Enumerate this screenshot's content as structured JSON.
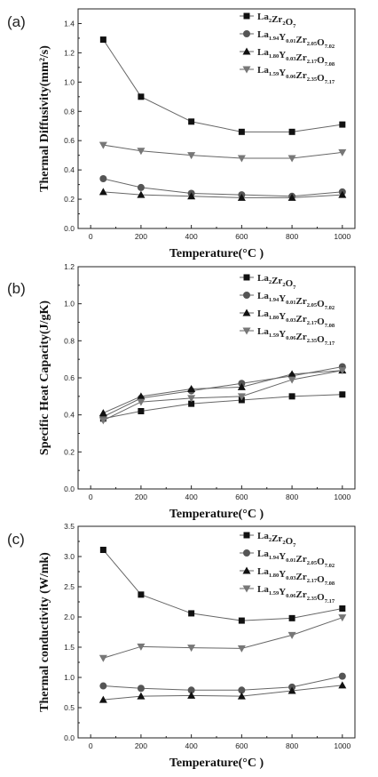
{
  "chart_data": [
    {
      "type": "line",
      "panel_label": "(a)",
      "xlabel": "Temperature(°C )",
      "ylabel": "Thermal Diffusivity(mm²/s)",
      "xlim": [
        -50,
        1050
      ],
      "ylim": [
        0.0,
        1.5
      ],
      "xticks": [
        "0",
        "200",
        "400",
        "600",
        "800",
        "1000"
      ],
      "yticks": [
        "0.0",
        "0.2",
        "0.4",
        "0.6",
        "0.8",
        "1.0",
        "1.2",
        "1.4"
      ],
      "x": [
        50,
        200,
        400,
        600,
        800,
        1000
      ],
      "series": [
        {
          "name": "La2Zr2O7",
          "label_main": "La",
          "label_parts": [
            [
              "La",
              "2"
            ],
            [
              "Zr",
              "2"
            ],
            [
              "O",
              "7"
            ]
          ],
          "marker": "square",
          "values": [
            1.29,
            0.9,
            0.73,
            0.66,
            0.66,
            0.71
          ]
        },
        {
          "name": "La1.94Y0.01Zr2.05O7.02",
          "label_parts": [
            [
              "La",
              "1.94"
            ],
            [
              "Y",
              "0.01"
            ],
            [
              "Zr",
              "2.05"
            ],
            [
              "O",
              "7.02"
            ]
          ],
          "marker": "circle",
          "values": [
            0.34,
            0.28,
            0.24,
            0.23,
            0.22,
            0.25
          ]
        },
        {
          "name": "La1.80Y0.03Zr2.17O7.08",
          "label_parts": [
            [
              "La",
              "1.80"
            ],
            [
              "Y",
              "0.03"
            ],
            [
              "Zr",
              "2.17"
            ],
            [
              "O",
              "7.08"
            ]
          ],
          "marker": "triangle-up",
          "values": [
            0.25,
            0.23,
            0.22,
            0.21,
            0.21,
            0.23
          ]
        },
        {
          "name": "La1.59Y0.06Zr2.35O7.17",
          "label_parts": [
            [
              "La",
              "1.59"
            ],
            [
              "Y",
              "0.06"
            ],
            [
              "Zr",
              "2.35"
            ],
            [
              "O",
              "7.17"
            ]
          ],
          "marker": "triangle-down",
          "values": [
            0.57,
            0.53,
            0.5,
            0.48,
            0.48,
            0.52
          ]
        }
      ]
    },
    {
      "type": "line",
      "panel_label": "(b)",
      "xlabel": "Temperature(°C )",
      "ylabel": "Specific Heat Capacity(J/gK)",
      "xlim": [
        -50,
        1050
      ],
      "ylim": [
        0.0,
        1.2
      ],
      "xticks": [
        "0",
        "200",
        "400",
        "600",
        "800",
        "1000"
      ],
      "yticks": [
        "0.0",
        "0.2",
        "0.4",
        "0.6",
        "0.8",
        "1.0",
        "1.2"
      ],
      "x": [
        50,
        200,
        400,
        600,
        800,
        1000
      ],
      "series": [
        {
          "name": "La2Zr2O7",
          "label_parts": [
            [
              "La",
              "2"
            ],
            [
              "Zr",
              "2"
            ],
            [
              "O",
              "7"
            ]
          ],
          "marker": "square",
          "values": [
            0.38,
            0.42,
            0.46,
            0.48,
            0.5,
            0.51
          ]
        },
        {
          "name": "La1.94Y0.01Zr2.05O7.02",
          "label_parts": [
            [
              "La",
              "1.94"
            ],
            [
              "Y",
              "0.01"
            ],
            [
              "Zr",
              "2.05"
            ],
            [
              "O",
              "7.02"
            ]
          ],
          "marker": "circle",
          "values": [
            0.39,
            0.49,
            0.53,
            0.57,
            0.61,
            0.66
          ]
        },
        {
          "name": "La1.80Y0.03Zr2.17O7.08",
          "label_parts": [
            [
              "La",
              "1.80"
            ],
            [
              "Y",
              "0.03"
            ],
            [
              "Zr",
              "2.17"
            ],
            [
              "O",
              "7.08"
            ]
          ],
          "marker": "triangle-up",
          "values": [
            0.41,
            0.5,
            0.54,
            0.55,
            0.62,
            0.64
          ]
        },
        {
          "name": "La1.59Y0.06Zr2.35O7.17",
          "label_parts": [
            [
              "La",
              "1.59"
            ],
            [
              "Y",
              "0.06"
            ],
            [
              "Zr",
              "2.35"
            ],
            [
              "O",
              "7.17"
            ]
          ],
          "marker": "triangle-down",
          "values": [
            0.37,
            0.47,
            0.49,
            0.5,
            0.59,
            0.64
          ]
        }
      ]
    },
    {
      "type": "line",
      "panel_label": "(c)",
      "xlabel": "Temperature(°C )",
      "ylabel": "Thermal conductivity (W/mk)",
      "xlim": [
        -50,
        1050
      ],
      "ylim": [
        0.0,
        3.5
      ],
      "xticks": [
        "0",
        "200",
        "400",
        "600",
        "800",
        "1000"
      ],
      "yticks": [
        "0.0",
        "0.5",
        "1.0",
        "1.5",
        "2.0",
        "2.5",
        "3.0",
        "3.5"
      ],
      "x": [
        50,
        200,
        400,
        600,
        800,
        1000
      ],
      "series": [
        {
          "name": "La2Zr2O7",
          "label_parts": [
            [
              "La",
              "2"
            ],
            [
              "Zr",
              "2"
            ],
            [
              "O",
              "7"
            ]
          ],
          "marker": "square",
          "values": [
            3.11,
            2.37,
            2.06,
            1.94,
            1.98,
            2.14
          ]
        },
        {
          "name": "La1.94Y0.01Zr2.05O7.02",
          "label_parts": [
            [
              "La",
              "1.94"
            ],
            [
              "Y",
              "0.01"
            ],
            [
              "Zr",
              "2.05"
            ],
            [
              "O",
              "7.02"
            ]
          ],
          "marker": "circle",
          "values": [
            0.86,
            0.82,
            0.79,
            0.79,
            0.84,
            1.02
          ]
        },
        {
          "name": "La1.80Y0.03Zr2.17O7.08",
          "label_parts": [
            [
              "La",
              "1.80"
            ],
            [
              "Y",
              "0.03"
            ],
            [
              "Zr",
              "2.17"
            ],
            [
              "O",
              "7.08"
            ]
          ],
          "marker": "triangle-up",
          "values": [
            0.63,
            0.69,
            0.7,
            0.69,
            0.78,
            0.87
          ]
        },
        {
          "name": "La1.59Y0.06Zr2.35O7.17",
          "label_parts": [
            [
              "La",
              "1.59"
            ],
            [
              "Y",
              "0.06"
            ],
            [
              "Zr",
              "2.35"
            ],
            [
              "O",
              "7.17"
            ]
          ],
          "marker": "triangle-down",
          "values": [
            1.32,
            1.51,
            1.49,
            1.48,
            1.7,
            1.99
          ]
        }
      ]
    }
  ],
  "colors": {
    "series": [
      "#111111",
      "#555555",
      "#111111",
      "#777777"
    ],
    "line": "#666666",
    "axis": "#222222"
  }
}
